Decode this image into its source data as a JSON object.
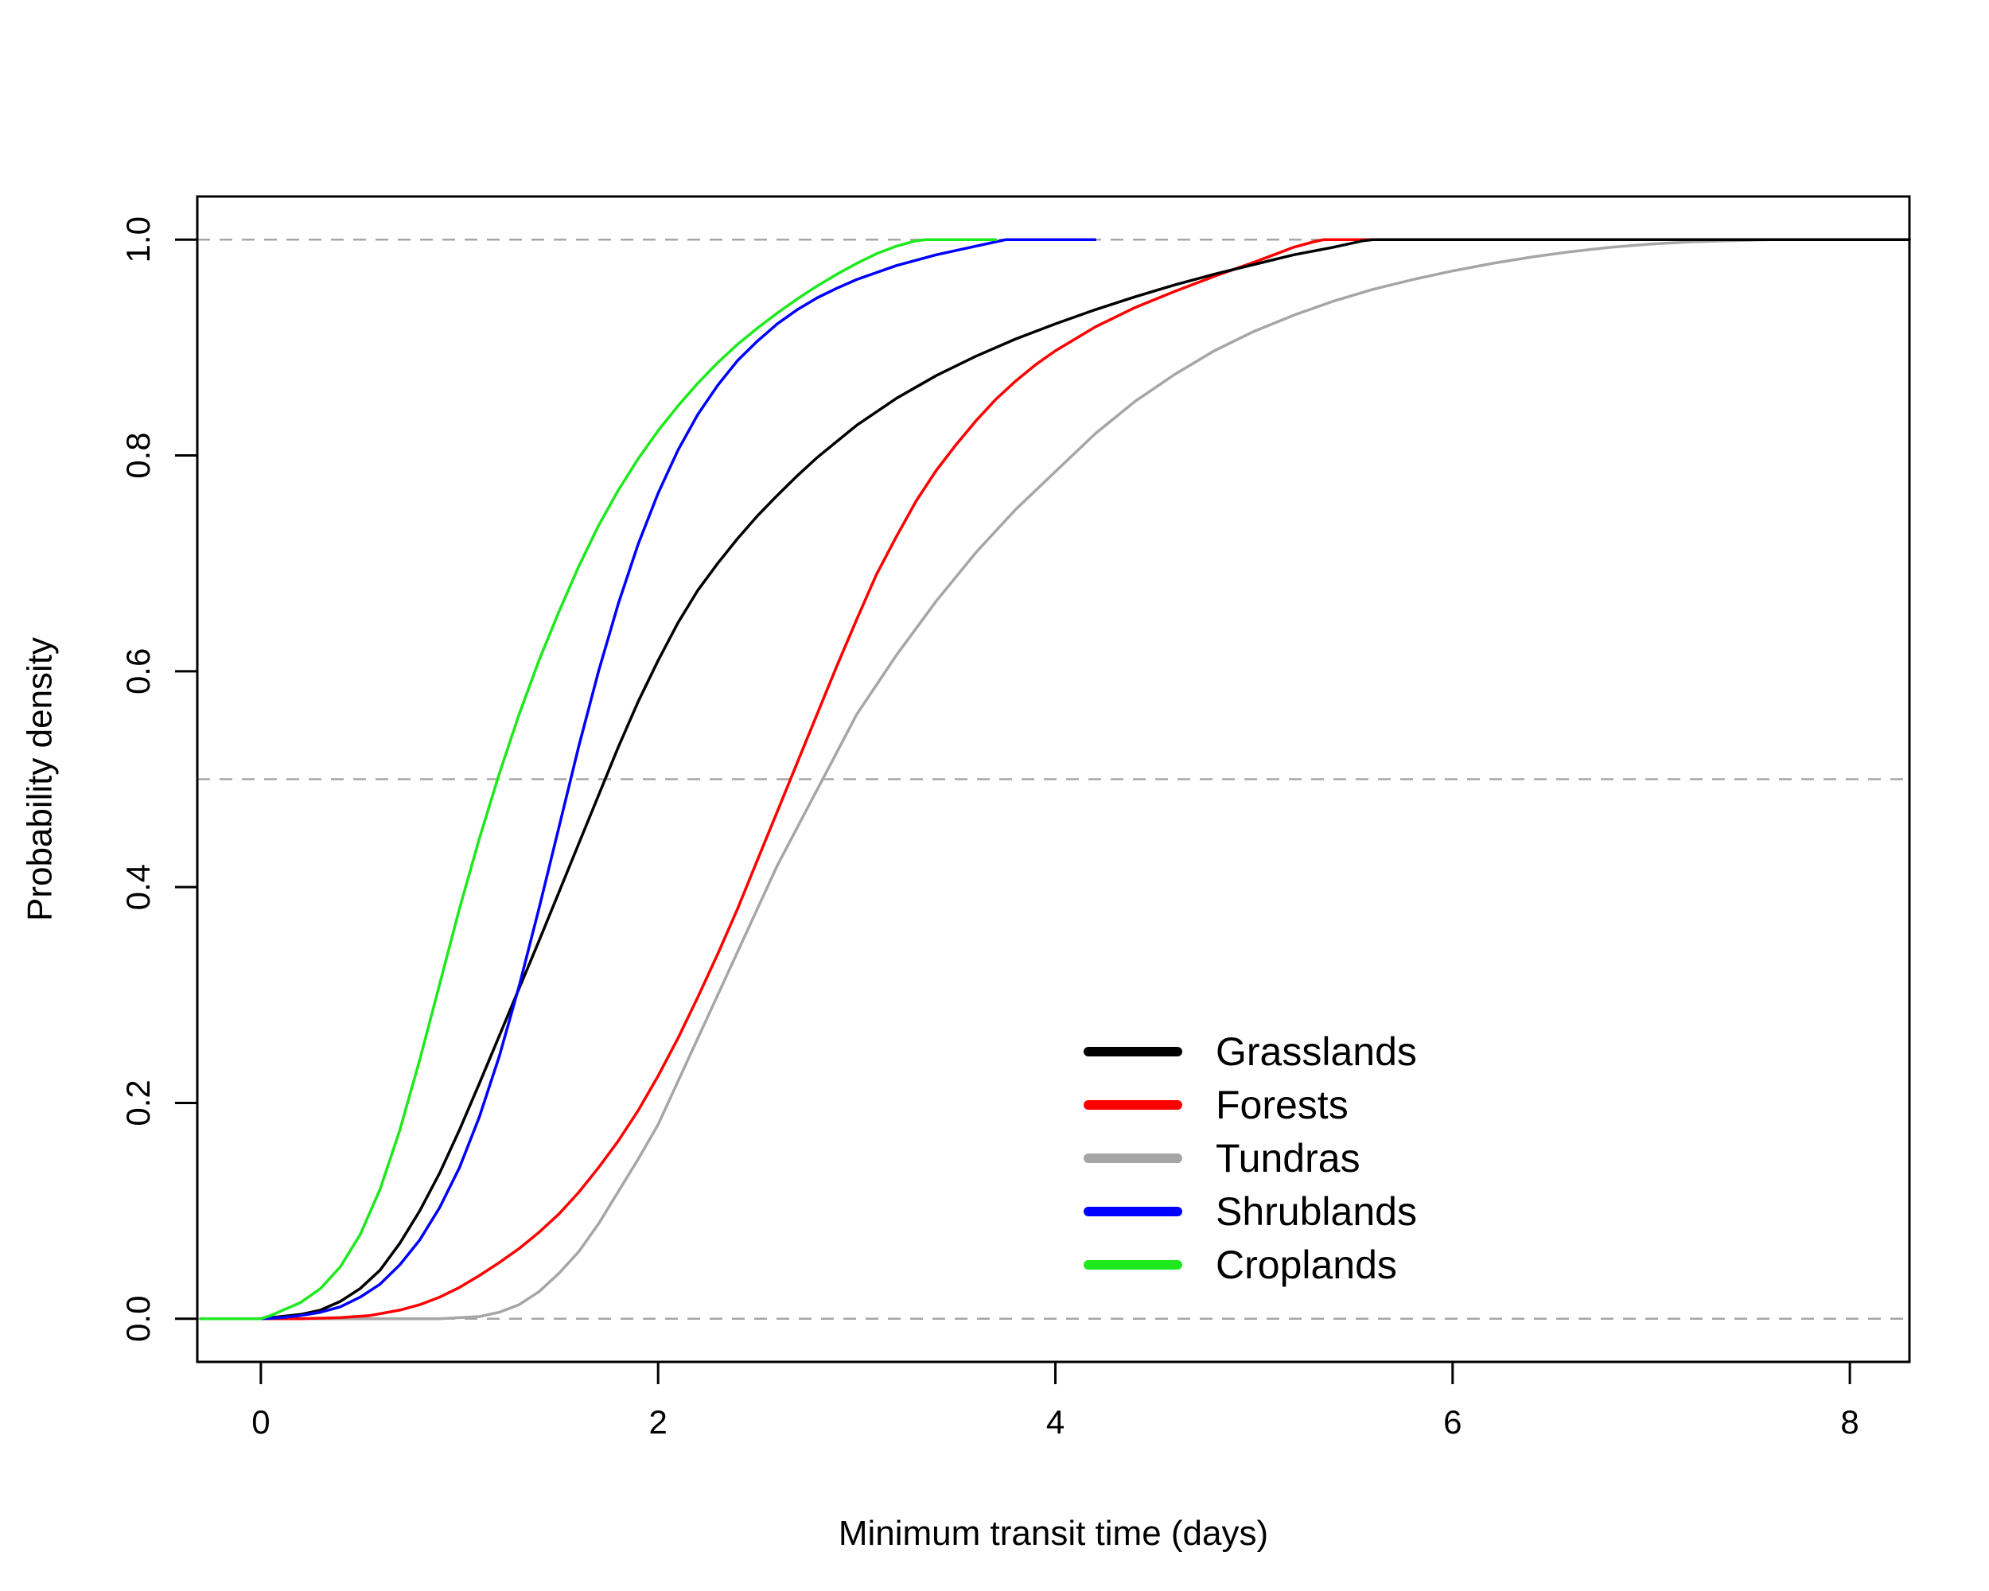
{
  "chart_data": {
    "type": "line",
    "title": "",
    "xlabel": "Minimum transit time (days)",
    "ylabel": "Probability density",
    "xlim": [
      -0.32,
      8.3
    ],
    "ylim": [
      -0.04,
      1.04
    ],
    "x_ticks": [
      {
        "value": 0,
        "label": "0"
      },
      {
        "value": 2,
        "label": "2"
      },
      {
        "value": 4,
        "label": "4"
      },
      {
        "value": 6,
        "label": "6"
      },
      {
        "value": 8,
        "label": "8"
      }
    ],
    "y_ticks": [
      {
        "value": 0,
        "label": "0.0"
      },
      {
        "value": 0.2,
        "label": "0.2"
      },
      {
        "value": 0.4,
        "label": "0.4"
      },
      {
        "value": 0.6,
        "label": "0.6"
      },
      {
        "value": 0.8,
        "label": "0.8"
      },
      {
        "value": 1,
        "label": "1.0"
      }
    ],
    "reference_lines": [
      {
        "y": 0.0,
        "style": "dashed",
        "color": "#a6a6a6"
      },
      {
        "y": 0.5,
        "style": "dashed",
        "color": "#a6a6a6"
      },
      {
        "y": 1.0,
        "style": "dashed",
        "color": "#a6a6a6"
      }
    ],
    "grid": false,
    "legend_position": "bottom-right",
    "series": [
      {
        "name": "Tundras",
        "color": "#a6a6a6",
        "points": [
          [
            -0.3,
            0
          ],
          [
            0.5,
            0
          ],
          [
            0.9,
            0
          ],
          [
            1.0,
            0.001
          ],
          [
            1.1,
            0.002
          ],
          [
            1.2,
            0.006
          ],
          [
            1.3,
            0.013
          ],
          [
            1.4,
            0.025
          ],
          [
            1.5,
            0.042
          ],
          [
            1.6,
            0.062
          ],
          [
            1.7,
            0.088
          ],
          [
            1.8,
            0.118
          ],
          [
            1.9,
            0.148
          ],
          [
            2.0,
            0.18
          ],
          [
            2.1,
            0.22
          ],
          [
            2.2,
            0.26
          ],
          [
            2.3,
            0.3
          ],
          [
            2.4,
            0.34
          ],
          [
            2.5,
            0.38
          ],
          [
            2.6,
            0.42
          ],
          [
            2.7,
            0.455
          ],
          [
            2.8,
            0.49
          ],
          [
            2.9,
            0.525
          ],
          [
            3.0,
            0.56
          ],
          [
            3.2,
            0.615
          ],
          [
            3.4,
            0.665
          ],
          [
            3.6,
            0.71
          ],
          [
            3.8,
            0.75
          ],
          [
            4.0,
            0.785
          ],
          [
            4.2,
            0.82
          ],
          [
            4.4,
            0.85
          ],
          [
            4.6,
            0.875
          ],
          [
            4.8,
            0.897
          ],
          [
            5.0,
            0.915
          ],
          [
            5.2,
            0.93
          ],
          [
            5.4,
            0.943
          ],
          [
            5.6,
            0.954
          ],
          [
            5.8,
            0.963
          ],
          [
            6.0,
            0.971
          ],
          [
            6.2,
            0.978
          ],
          [
            6.4,
            0.984
          ],
          [
            6.6,
            0.989
          ],
          [
            6.8,
            0.993
          ],
          [
            7.0,
            0.996
          ],
          [
            7.2,
            0.998
          ],
          [
            7.4,
            0.999
          ],
          [
            7.6,
            1.0
          ],
          [
            8.3,
            1.0
          ]
        ]
      },
      {
        "name": "Forests",
        "color": "#ff0000",
        "points": [
          [
            -0.3,
            0
          ],
          [
            0.2,
            0
          ],
          [
            0.4,
            0.001
          ],
          [
            0.55,
            0.003
          ],
          [
            0.7,
            0.008
          ],
          [
            0.8,
            0.013
          ],
          [
            0.9,
            0.02
          ],
          [
            1.0,
            0.029
          ],
          [
            1.1,
            0.04
          ],
          [
            1.2,
            0.052
          ],
          [
            1.3,
            0.065
          ],
          [
            1.4,
            0.08
          ],
          [
            1.5,
            0.097
          ],
          [
            1.6,
            0.117
          ],
          [
            1.7,
            0.14
          ],
          [
            1.8,
            0.165
          ],
          [
            1.9,
            0.193
          ],
          [
            2.0,
            0.225
          ],
          [
            2.1,
            0.26
          ],
          [
            2.2,
            0.298
          ],
          [
            2.3,
            0.338
          ],
          [
            2.4,
            0.38
          ],
          [
            2.5,
            0.425
          ],
          [
            2.6,
            0.47
          ],
          [
            2.7,
            0.515
          ],
          [
            2.8,
            0.56
          ],
          [
            2.9,
            0.605
          ],
          [
            3.0,
            0.648
          ],
          [
            3.1,
            0.69
          ],
          [
            3.2,
            0.725
          ],
          [
            3.3,
            0.758
          ],
          [
            3.4,
            0.786
          ],
          [
            3.5,
            0.81
          ],
          [
            3.6,
            0.832
          ],
          [
            3.7,
            0.852
          ],
          [
            3.8,
            0.869
          ],
          [
            3.9,
            0.884
          ],
          [
            4.0,
            0.897
          ],
          [
            4.2,
            0.919
          ],
          [
            4.4,
            0.937
          ],
          [
            4.6,
            0.952
          ],
          [
            4.8,
            0.966
          ],
          [
            5.0,
            0.979
          ],
          [
            5.1,
            0.986
          ],
          [
            5.2,
            0.993
          ],
          [
            5.3,
            0.998
          ],
          [
            5.35,
            1.0
          ],
          [
            8.3,
            1.0
          ]
        ]
      },
      {
        "name": "Grasslands",
        "color": "#000000",
        "points": [
          [
            -0.3,
            0
          ],
          [
            0.0,
            0
          ],
          [
            0.1,
            0.002
          ],
          [
            0.2,
            0.004
          ],
          [
            0.3,
            0.008
          ],
          [
            0.4,
            0.016
          ],
          [
            0.5,
            0.028
          ],
          [
            0.6,
            0.045
          ],
          [
            0.7,
            0.07
          ],
          [
            0.8,
            0.1
          ],
          [
            0.9,
            0.135
          ],
          [
            1.0,
            0.175
          ],
          [
            1.1,
            0.218
          ],
          [
            1.2,
            0.262
          ],
          [
            1.3,
            0.306
          ],
          [
            1.4,
            0.35
          ],
          [
            1.5,
            0.395
          ],
          [
            1.6,
            0.44
          ],
          [
            1.7,
            0.485
          ],
          [
            1.8,
            0.53
          ],
          [
            1.9,
            0.572
          ],
          [
            2.0,
            0.61
          ],
          [
            2.1,
            0.645
          ],
          [
            2.2,
            0.675
          ],
          [
            2.3,
            0.7
          ],
          [
            2.4,
            0.723
          ],
          [
            2.5,
            0.744
          ],
          [
            2.6,
            0.763
          ],
          [
            2.7,
            0.781
          ],
          [
            2.8,
            0.798
          ],
          [
            2.9,
            0.813
          ],
          [
            3.0,
            0.828
          ],
          [
            3.2,
            0.853
          ],
          [
            3.4,
            0.874
          ],
          [
            3.6,
            0.892
          ],
          [
            3.8,
            0.908
          ],
          [
            4.0,
            0.922
          ],
          [
            4.2,
            0.935
          ],
          [
            4.4,
            0.947
          ],
          [
            4.6,
            0.958
          ],
          [
            4.8,
            0.968
          ],
          [
            5.0,
            0.977
          ],
          [
            5.2,
            0.986
          ],
          [
            5.4,
            0.993
          ],
          [
            5.55,
            0.999
          ],
          [
            5.6,
            1.0
          ],
          [
            8.3,
            1.0
          ]
        ]
      },
      {
        "name": "Shrublands",
        "color": "#0000ff",
        "points": [
          [
            -0.3,
            0
          ],
          [
            0.0,
            0
          ],
          [
            0.1,
            0.001
          ],
          [
            0.2,
            0.003
          ],
          [
            0.3,
            0.006
          ],
          [
            0.4,
            0.011
          ],
          [
            0.5,
            0.02
          ],
          [
            0.6,
            0.032
          ],
          [
            0.7,
            0.05
          ],
          [
            0.8,
            0.073
          ],
          [
            0.9,
            0.103
          ],
          [
            1.0,
            0.14
          ],
          [
            1.1,
            0.187
          ],
          [
            1.2,
            0.243
          ],
          [
            1.3,
            0.308
          ],
          [
            1.4,
            0.38
          ],
          [
            1.5,
            0.455
          ],
          [
            1.6,
            0.53
          ],
          [
            1.7,
            0.6
          ],
          [
            1.8,
            0.663
          ],
          [
            1.9,
            0.718
          ],
          [
            2.0,
            0.765
          ],
          [
            2.1,
            0.805
          ],
          [
            2.2,
            0.838
          ],
          [
            2.3,
            0.865
          ],
          [
            2.4,
            0.888
          ],
          [
            2.5,
            0.906
          ],
          [
            2.6,
            0.922
          ],
          [
            2.7,
            0.935
          ],
          [
            2.8,
            0.946
          ],
          [
            2.9,
            0.955
          ],
          [
            3.0,
            0.963
          ],
          [
            3.2,
            0.976
          ],
          [
            3.4,
            0.986
          ],
          [
            3.6,
            0.994
          ],
          [
            3.7,
            0.998
          ],
          [
            3.75,
            1.0
          ],
          [
            4.2,
            1.0
          ]
        ]
      },
      {
        "name": "Croplands",
        "color": "#1ee91e",
        "points": [
          [
            -0.3,
            0
          ],
          [
            0.0,
            0
          ],
          [
            0.05,
            0.003
          ],
          [
            0.1,
            0.007
          ],
          [
            0.2,
            0.015
          ],
          [
            0.3,
            0.028
          ],
          [
            0.4,
            0.048
          ],
          [
            0.5,
            0.078
          ],
          [
            0.6,
            0.12
          ],
          [
            0.7,
            0.175
          ],
          [
            0.8,
            0.24
          ],
          [
            0.9,
            0.31
          ],
          [
            1.0,
            0.38
          ],
          [
            1.1,
            0.445
          ],
          [
            1.2,
            0.505
          ],
          [
            1.3,
            0.56
          ],
          [
            1.4,
            0.61
          ],
          [
            1.5,
            0.655
          ],
          [
            1.6,
            0.697
          ],
          [
            1.7,
            0.735
          ],
          [
            1.8,
            0.768
          ],
          [
            1.9,
            0.797
          ],
          [
            2.0,
            0.823
          ],
          [
            2.1,
            0.846
          ],
          [
            2.2,
            0.867
          ],
          [
            2.3,
            0.886
          ],
          [
            2.4,
            0.903
          ],
          [
            2.5,
            0.918
          ],
          [
            2.6,
            0.932
          ],
          [
            2.7,
            0.945
          ],
          [
            2.8,
            0.957
          ],
          [
            2.9,
            0.968
          ],
          [
            3.0,
            0.978
          ],
          [
            3.1,
            0.987
          ],
          [
            3.2,
            0.994
          ],
          [
            3.3,
            0.999
          ],
          [
            3.35,
            1.0
          ],
          [
            3.7,
            1.0
          ]
        ]
      }
    ],
    "legend": [
      {
        "name": "Grasslands",
        "color": "#000000"
      },
      {
        "name": "Forests",
        "color": "#ff0000"
      },
      {
        "name": "Tundras",
        "color": "#a6a6a6"
      },
      {
        "name": "Shrublands",
        "color": "#0000ff"
      },
      {
        "name": "Croplands",
        "color": "#1ee91e"
      }
    ]
  }
}
